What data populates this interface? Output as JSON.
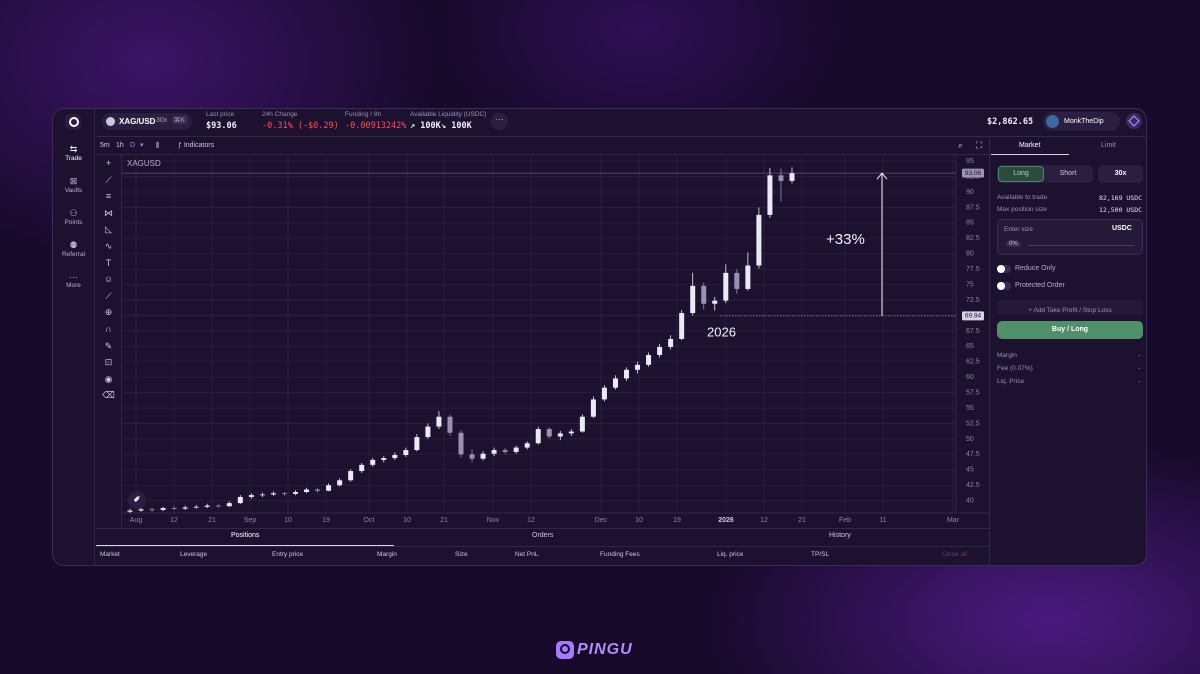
{
  "sidebar": {
    "items": [
      "Trade",
      "Vaults",
      "Points",
      "Referral",
      "More"
    ]
  },
  "topbar": {
    "pair": "XAG/USD",
    "leverage": "30x",
    "shortcut": "⌘K",
    "last_price_label": "Last price",
    "last_price": "$93.06",
    "change_label": "24h Change",
    "change": "-0.31% (-$0.29)",
    "funding_label": "Funding / 8h",
    "funding": "-0.00913242%",
    "liquidity_label": "Available Liquidity (USDC)",
    "liquidity_long": "↗ 100K",
    "liquidity_short": "↘ 100K",
    "balance": "$2,862.65",
    "user": "MonkTheDip"
  },
  "toolbar": {
    "intervals": [
      "5m",
      "1h",
      "D"
    ],
    "indicators": "Indicators"
  },
  "chart_data": {
    "type": "candlestick",
    "title": "XAGUSD",
    "up_color": "#ece8f4",
    "down_color": "#9a90b0",
    "ylim": [
      38,
      96
    ],
    "yticks": [
      95,
      92.5,
      90,
      87.5,
      85,
      82.5,
      80,
      77.5,
      75,
      72.5,
      70,
      67.5,
      65,
      62.5,
      60,
      57.5,
      55,
      52.5,
      50,
      47.5,
      45,
      42.5,
      40
    ],
    "x_labels": [
      "Aug",
      "12",
      "21",
      "Sep",
      "10",
      "19",
      "Oct",
      "10",
      "21",
      "Nov",
      "12",
      "Dec",
      "10",
      "19",
      "2026",
      "12",
      "21",
      "Feb",
      "11",
      "Mar"
    ],
    "price_lines": [
      93.06,
      69.94
    ],
    "annotations": [
      "+33%",
      "2026"
    ],
    "candles": [
      [
        38.2,
        38.7,
        38.0,
        38.4
      ],
      [
        38.4,
        38.9,
        38.2,
        38.6
      ],
      [
        38.6,
        38.8,
        38.2,
        38.5
      ],
      [
        38.5,
        39.0,
        38.3,
        38.8
      ],
      [
        38.8,
        39.1,
        38.5,
        38.7
      ],
      [
        38.7,
        39.2,
        38.5,
        38.9
      ],
      [
        38.9,
        39.3,
        38.7,
        39.0
      ],
      [
        39.0,
        39.5,
        38.8,
        39.2
      ],
      [
        39.2,
        39.4,
        38.9,
        39.1
      ],
      [
        39.1,
        39.9,
        39.0,
        39.6
      ],
      [
        39.6,
        40.9,
        39.5,
        40.6
      ],
      [
        40.6,
        41.2,
        40.3,
        40.9
      ],
      [
        40.9,
        41.3,
        40.6,
        41.0
      ],
      [
        41.0,
        41.5,
        40.8,
        41.2
      ],
      [
        41.2,
        41.4,
        40.8,
        41.1
      ],
      [
        41.1,
        41.7,
        40.9,
        41.4
      ],
      [
        41.4,
        42.1,
        41.2,
        41.8
      ],
      [
        41.8,
        42.0,
        41.3,
        41.6
      ],
      [
        41.6,
        42.8,
        41.5,
        42.5
      ],
      [
        42.5,
        43.6,
        42.3,
        43.3
      ],
      [
        43.3,
        45.1,
        43.1,
        44.8
      ],
      [
        44.8,
        46.1,
        44.5,
        45.8
      ],
      [
        45.8,
        46.9,
        45.5,
        46.6
      ],
      [
        46.6,
        47.2,
        46.2,
        46.9
      ],
      [
        46.9,
        47.8,
        46.6,
        47.4
      ],
      [
        47.4,
        48.6,
        47.1,
        48.2
      ],
      [
        48.2,
        50.8,
        48.0,
        50.3
      ],
      [
        50.3,
        52.5,
        50.0,
        52.0
      ],
      [
        52.0,
        54.5,
        51.6,
        53.6
      ],
      [
        53.6,
        53.9,
        50.5,
        51.0
      ],
      [
        51.0,
        51.4,
        47.0,
        47.5
      ],
      [
        47.5,
        48.3,
        46.2,
        46.8
      ],
      [
        46.8,
        48.0,
        46.5,
        47.6
      ],
      [
        47.6,
        48.6,
        47.2,
        48.2
      ],
      [
        48.2,
        48.5,
        47.5,
        47.9
      ],
      [
        47.9,
        48.9,
        47.6,
        48.6
      ],
      [
        48.6,
        49.6,
        48.3,
        49.3
      ],
      [
        49.3,
        52.0,
        49.1,
        51.6
      ],
      [
        51.6,
        51.9,
        50.1,
        50.4
      ],
      [
        50.4,
        51.3,
        49.8,
        50.9
      ],
      [
        50.9,
        51.6,
        50.5,
        51.2
      ],
      [
        51.2,
        54.0,
        51.0,
        53.6
      ],
      [
        53.6,
        56.9,
        53.4,
        56.4
      ],
      [
        56.4,
        58.7,
        56.1,
        58.3
      ],
      [
        58.3,
        60.3,
        58.0,
        59.8
      ],
      [
        59.8,
        61.6,
        59.4,
        61.2
      ],
      [
        61.2,
        62.5,
        60.6,
        62.0
      ],
      [
        62.0,
        64.0,
        61.7,
        63.6
      ],
      [
        63.6,
        65.4,
        63.2,
        64.9
      ],
      [
        64.9,
        66.8,
        64.5,
        66.2
      ],
      [
        66.2,
        70.9,
        66.0,
        70.4
      ],
      [
        70.4,
        76.9,
        70.0,
        74.8
      ],
      [
        74.8,
        75.3,
        71.0,
        71.9
      ],
      [
        71.9,
        73.0,
        70.8,
        72.4
      ],
      [
        72.4,
        78.3,
        72.0,
        76.9
      ],
      [
        76.9,
        77.5,
        73.5,
        74.3
      ],
      [
        74.3,
        80.2,
        74.0,
        78.1
      ],
      [
        78.1,
        87.5,
        77.6,
        86.3
      ],
      [
        86.3,
        93.9,
        85.8,
        92.7
      ],
      [
        92.7,
        93.8,
        88.5,
        91.8
      ],
      [
        91.8,
        94.0,
        91.4,
        93.06
      ]
    ]
  },
  "order_panel": {
    "tabs": [
      "Market",
      "Limit"
    ],
    "long": "Long",
    "short": "Short",
    "leverage": "30x",
    "available_label": "Available to trade",
    "available": "82,169 USDC",
    "max_label": "Max position size",
    "max": "12,500 USDC",
    "size_label": "Enter size",
    "size_unit": "USDC",
    "percent": "0%",
    "reduce_only": "Reduce Only",
    "protected": "Protected Order",
    "tp_sl": "+ Add Take Profit / Stop Loss",
    "submit": "Buy / Long",
    "margin_label": "Margin",
    "margin": "-",
    "fee_label": "Fee (0.07%)",
    "fee": "-",
    "liq_label": "Liq. Price",
    "liq": "-"
  },
  "positions": {
    "tabs": [
      "Positions",
      "Orders",
      "History"
    ],
    "columns": [
      "Market",
      "Leverage",
      "Entry price",
      "Margin",
      "Size",
      "Net PnL",
      "Funding Fees",
      "Liq. price",
      "TP/SL"
    ],
    "close_all": "Close all"
  },
  "brand": "PINGU"
}
